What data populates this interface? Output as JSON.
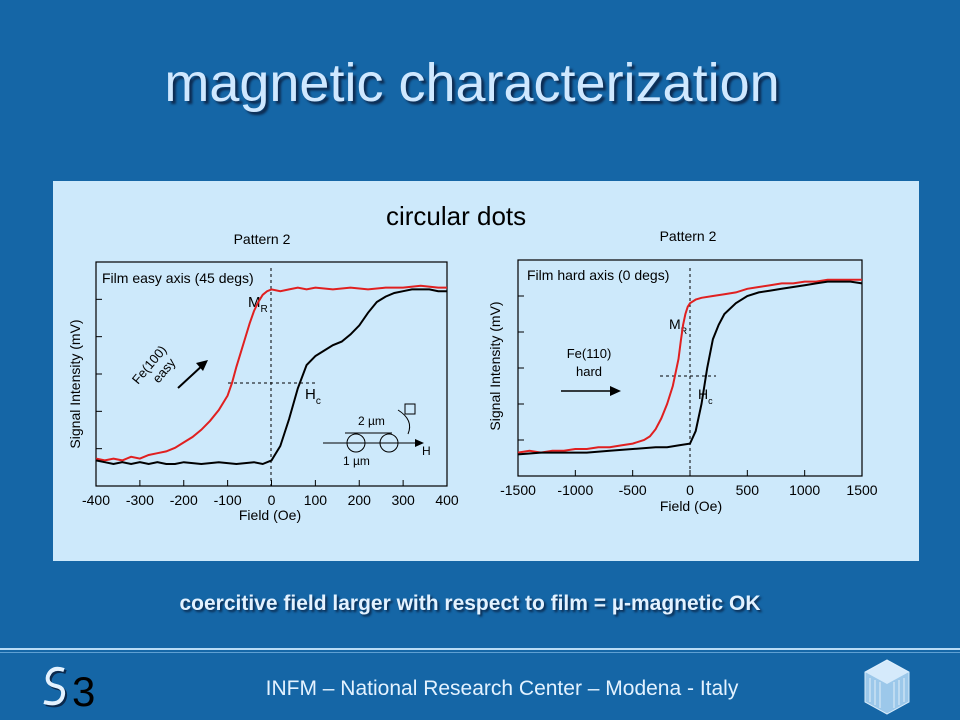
{
  "slide": {
    "title": "magnetic characterization",
    "subtitle": "circular dots",
    "caption": "coercitive field larger with respect to film = µ-magnetic OK",
    "footer": "INFM – National Research Center – Modena - Italy",
    "logo_text": "S3"
  },
  "colors": {
    "dots_curve": "#e02020",
    "film_curve": "#000000",
    "background": "#1566a6",
    "panel": "#cde9fb"
  },
  "chart_data": [
    {
      "type": "line",
      "title": "Pattern 2",
      "legend_text": "Film easy axis (45 degs)",
      "xlabel": "Field (Oe)",
      "ylabel": "Signal Intensity (mV)",
      "xlim": [
        -400,
        400
      ],
      "xticks": [
        -400,
        -300,
        -200,
        -100,
        0,
        100,
        200,
        300,
        400
      ],
      "ylim": [
        0,
        1
      ],
      "annotations": {
        "mr": "M",
        "mr_sub": "R",
        "hc": "H",
        "hc_sub": "c",
        "direction": "Fe(100)",
        "direction2": "easy",
        "inset_top": "2 µm",
        "inset_bottom": "1 µm",
        "inset_field": "H"
      },
      "series": [
        {
          "values_x": [
            -400,
            -380,
            -360,
            -340,
            -320,
            -300,
            -280,
            -260,
            -240,
            -220,
            -200,
            -180,
            -160,
            -140,
            -120,
            -100,
            -90,
            -80,
            -70,
            -60,
            -50,
            -40,
            -30,
            -20,
            -10,
            0,
            20,
            40,
            60,
            80,
            100,
            140,
            180,
            220,
            260,
            300,
            340,
            380,
            400
          ],
          "values_y": [
            0.03,
            0.02,
            0.03,
            0.02,
            0.04,
            0.03,
            0.05,
            0.06,
            0.07,
            0.09,
            0.12,
            0.15,
            0.19,
            0.24,
            0.3,
            0.38,
            0.45,
            0.54,
            0.62,
            0.7,
            0.78,
            0.85,
            0.9,
            0.94,
            0.96,
            0.97,
            0.96,
            0.97,
            0.98,
            0.97,
            0.98,
            0.97,
            0.98,
            0.97,
            0.98,
            0.98,
            0.99,
            0.98,
            0.98
          ]
        },
        {
          "values_x": [
            -400,
            -380,
            -360,
            -340,
            -320,
            -300,
            -280,
            -260,
            -240,
            -220,
            -200,
            -160,
            -120,
            -80,
            -40,
            -20,
            0,
            20,
            40,
            60,
            80,
            100,
            120,
            140,
            160,
            180,
            200,
            220,
            240,
            260,
            280,
            300,
            320,
            340,
            360,
            380,
            400
          ],
          "values_y": [
            0.02,
            0.01,
            0.0,
            0.01,
            0.0,
            0.01,
            0.0,
            0.01,
            0.0,
            0.0,
            0.01,
            0.0,
            0.01,
            0.0,
            0.01,
            0.0,
            0.02,
            0.1,
            0.25,
            0.42,
            0.55,
            0.6,
            0.63,
            0.66,
            0.68,
            0.72,
            0.77,
            0.84,
            0.9,
            0.93,
            0.95,
            0.96,
            0.97,
            0.97,
            0.97,
            0.96,
            0.96
          ]
        }
      ]
    },
    {
      "type": "line",
      "title": "Pattern 2",
      "legend_text": "Film hard axis (0 degs)",
      "xlabel": "Field (Oe)",
      "ylabel": "Signal Intensity (mV)",
      "xlim": [
        -1500,
        1500
      ],
      "xticks": [
        -1500,
        -1000,
        -500,
        0,
        500,
        1000,
        1500
      ],
      "ylim": [
        0,
        1
      ],
      "annotations": {
        "mr": "M",
        "mr_sub": "R",
        "hc": "H",
        "hc_sub": "c",
        "direction": "Fe(110)",
        "direction2": "hard"
      },
      "series": [
        {
          "values_x": [
            -1500,
            -1400,
            -1300,
            -1200,
            -1100,
            -1000,
            -900,
            -800,
            -700,
            -600,
            -500,
            -400,
            -350,
            -300,
            -250,
            -200,
            -150,
            -100,
            -80,
            -60,
            -40,
            -20,
            0,
            50,
            100,
            200,
            300,
            400,
            500,
            600,
            700,
            800,
            900,
            1000,
            1100,
            1200,
            1300,
            1400,
            1500
          ],
          "values_y": [
            0.03,
            0.04,
            0.03,
            0.04,
            0.04,
            0.05,
            0.05,
            0.06,
            0.06,
            0.07,
            0.08,
            0.1,
            0.12,
            0.16,
            0.22,
            0.3,
            0.4,
            0.55,
            0.65,
            0.74,
            0.8,
            0.84,
            0.86,
            0.88,
            0.89,
            0.9,
            0.91,
            0.92,
            0.94,
            0.95,
            0.96,
            0.97,
            0.97,
            0.98,
            0.98,
            0.99,
            0.99,
            0.99,
            0.99
          ]
        },
        {
          "values_x": [
            -1500,
            -1300,
            -1100,
            -900,
            -700,
            -500,
            -300,
            -200,
            -100,
            0,
            50,
            100,
            150,
            200,
            250,
            300,
            400,
            500,
            600,
            700,
            800,
            900,
            1000,
            1100,
            1200,
            1300,
            1400,
            1500
          ],
          "values_y": [
            0.02,
            0.03,
            0.03,
            0.03,
            0.04,
            0.05,
            0.06,
            0.06,
            0.07,
            0.08,
            0.15,
            0.3,
            0.5,
            0.66,
            0.74,
            0.8,
            0.86,
            0.9,
            0.92,
            0.93,
            0.94,
            0.95,
            0.96,
            0.97,
            0.98,
            0.98,
            0.98,
            0.97
          ]
        }
      ]
    }
  ]
}
